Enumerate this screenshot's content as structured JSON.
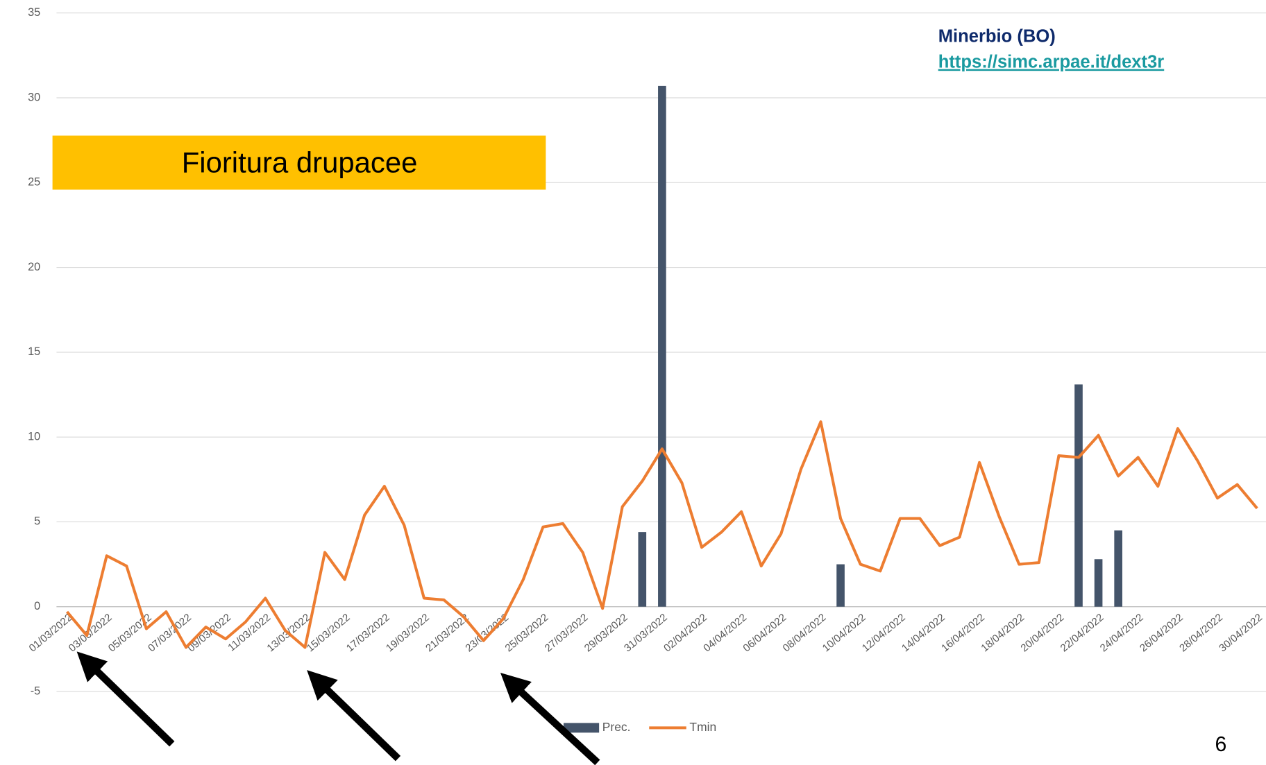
{
  "chart_data": {
    "type": "combo",
    "annotation": "Fioritura drupacee",
    "station": "Minerbio (BO)",
    "source_link": "https://simc.arpae.it/dext3r",
    "page_number": "6",
    "categories": [
      "01/03/2022",
      null,
      "03/03/2022",
      null,
      "05/03/2022",
      null,
      "07/03/2022",
      null,
      "09/03/2022",
      null,
      "11/03/2022",
      null,
      "13/03/2022",
      null,
      "15/03/2022",
      null,
      "17/03/2022",
      null,
      "19/03/2022",
      null,
      "21/03/2022",
      null,
      "23/03/2022",
      null,
      "25/03/2022",
      null,
      "27/03/2022",
      null,
      "29/03/2022",
      null,
      "31/03/2022",
      null,
      "02/04/2022",
      null,
      "04/04/2022",
      null,
      "06/04/2022",
      null,
      "08/04/2022",
      null,
      "10/04/2022",
      null,
      "12/04/2022",
      null,
      "14/04/2022",
      null,
      "16/04/2022",
      null,
      "18/04/2022",
      null,
      "20/04/2022",
      null,
      "22/04/2022",
      null,
      "24/04/2022",
      null,
      "26/04/2022",
      null,
      "28/04/2022",
      null,
      "30/04/2022"
    ],
    "series": [
      {
        "name": "Prec.",
        "type": "bar",
        "color": "#44546a",
        "values": [
          0,
          0,
          0,
          0,
          0,
          0,
          0,
          0,
          0,
          0,
          0,
          0,
          0,
          0,
          0,
          0,
          0,
          0,
          0,
          0,
          0,
          0,
          0,
          0,
          0,
          0,
          0,
          0,
          0,
          4.4,
          30.7,
          0,
          0,
          0,
          0,
          0,
          0,
          0,
          0,
          2.5,
          0,
          0,
          0,
          0,
          0,
          0,
          0,
          0,
          0,
          0,
          0,
          13.1,
          2.8,
          4.5,
          0,
          0,
          0,
          0,
          0,
          0,
          0
        ]
      },
      {
        "name": "Tmin",
        "type": "line",
        "color": "#ed7d31",
        "values": [
          -0.3,
          -1.7,
          3.0,
          2.4,
          -1.3,
          -0.3,
          -2.4,
          -1.2,
          -1.9,
          -0.9,
          0.5,
          -1.4,
          -2.4,
          3.2,
          1.6,
          5.4,
          7.1,
          4.8,
          0.5,
          0.4,
          -0.6,
          -2.0,
          -0.7,
          1.6,
          4.7,
          4.9,
          3.2,
          -0.1,
          5.9,
          7.4,
          9.3,
          7.3,
          3.5,
          4.4,
          5.6,
          2.4,
          4.3,
          8.1,
          10.9,
          5.2,
          2.5,
          2.1,
          5.2,
          5.2,
          3.6,
          4.1,
          8.5,
          5.3,
          2.5,
          2.6,
          8.9,
          8.8,
          10.1,
          7.7,
          8.8,
          7.1,
          10.5,
          8.6,
          6.4,
          7.2,
          5.8
        ]
      }
    ],
    "ylim": [
      -5,
      35
    ],
    "yticks": [
      -5,
      0,
      5,
      10,
      15,
      20,
      25,
      30,
      35
    ],
    "grid": true,
    "legend": "bottom"
  }
}
